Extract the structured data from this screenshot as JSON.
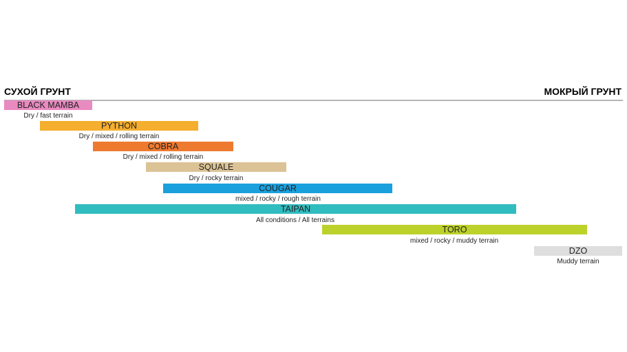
{
  "header": {
    "left_label": "СУХОЙ ГРУНТ",
    "right_label": "МОКРЫЙ ГРУНТ"
  },
  "tires": [
    {
      "name": "BLACK MAMBA",
      "description": "Dry / fast terrain",
      "color": "#e98ac0"
    },
    {
      "name": "PYTHON",
      "description": "Dry / mixed / rolling terrain",
      "color": "#f5ae2e"
    },
    {
      "name": "COBRA",
      "description": "Dry / mixed / rolling terrain",
      "color": "#ee7a30"
    },
    {
      "name": "SQUALE",
      "description": "Dry / rocky terrain",
      "color": "#dcc396"
    },
    {
      "name": "COUGAR",
      "description": "mixed / rocky / rough terrain",
      "color": "#1aa0dd"
    },
    {
      "name": "TAIPAN",
      "description": "All conditions / All terrains",
      "color": "#31bcc0"
    },
    {
      "name": "TORO",
      "description": "mixed / rocky / muddy terrain",
      "color": "#bcd12a"
    },
    {
      "name": "DZO",
      "description": "Muddy terrain",
      "color": "#dedede"
    }
  ]
}
